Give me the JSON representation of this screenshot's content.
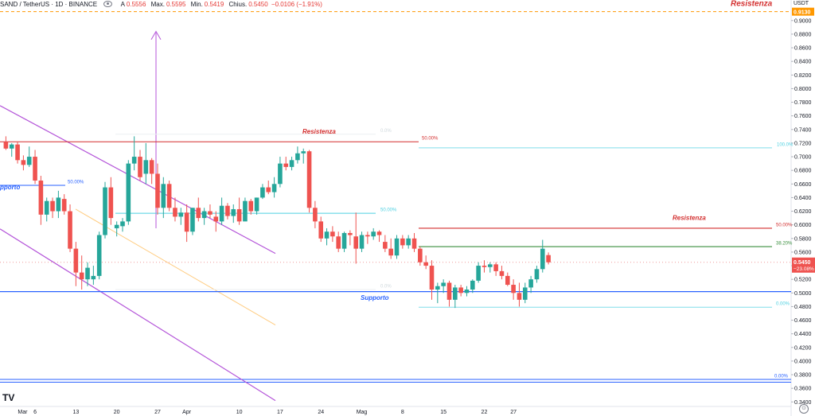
{
  "header": {
    "symbol": "SAND / TetherUS · 1D · BINANCE",
    "open_label": "A",
    "open_value": "0.5556",
    "high_label": "Max.",
    "high_value": "0.5595",
    "low_label": "Min.",
    "low_value": "0.5419",
    "close_label": "Chius.",
    "close_value": "0.5450",
    "change_value": "−0.0106 (−1.91%)"
  },
  "toolbar": {
    "currency_label": "USDT",
    "scale_toggle": "⊙"
  },
  "logo_text": "TV",
  "colors": {
    "up": "#26a69a",
    "down": "#ef5350",
    "purple": "#b455d9",
    "blue": "#2962ff",
    "red": "#d32f2f",
    "green": "#388e3c",
    "cyan": "#4dd0e1",
    "orange": "#ff9800"
  },
  "chart_data": {
    "type": "candlestick",
    "ylim": [
      0.33,
      0.92
    ],
    "y_ticks": [
      "0.9000",
      "0.8800",
      "0.8600",
      "0.8400",
      "0.8200",
      "0.8000",
      "0.7800",
      "0.7600",
      "0.7400",
      "0.7200",
      "0.7000",
      "0.6800",
      "0.6600",
      "0.6400",
      "0.6200",
      "0.6000",
      "0.5800",
      "0.5600",
      "0.5400",
      "0.5200",
      "0.5000",
      "0.4800",
      "0.4600",
      "0.4400",
      "0.4200",
      "0.4000",
      "0.3800",
      "0.3600",
      "0.3400"
    ],
    "x_ticks": [
      {
        "label": "Mar",
        "day": 0
      },
      {
        "label": "6",
        "day": 5
      },
      {
        "label": "13",
        "day": 12
      },
      {
        "label": "20",
        "day": 19
      },
      {
        "label": "27",
        "day": 26
      },
      {
        "label": "Apr",
        "day": 31
      },
      {
        "label": "10",
        "day": 40
      },
      {
        "label": "17",
        "day": 47
      },
      {
        "label": "24",
        "day": 54
      },
      {
        "label": "Mag",
        "day": 61
      },
      {
        "label": "8",
        "day": 68
      },
      {
        "label": "15",
        "day": 75
      },
      {
        "label": "22",
        "day": 82
      },
      {
        "label": "27",
        "day": 87
      }
    ],
    "candles": [
      [
        0.722,
        0.73,
        0.71,
        0.712
      ],
      [
        0.712,
        0.72,
        0.7,
        0.718
      ],
      [
        0.718,
        0.722,
        0.69,
        0.695
      ],
      [
        0.695,
        0.702,
        0.68,
        0.688
      ],
      [
        0.688,
        0.715,
        0.685,
        0.7
      ],
      [
        0.7,
        0.71,
        0.66,
        0.665
      ],
      [
        0.665,
        0.672,
        0.6,
        0.615
      ],
      [
        0.615,
        0.64,
        0.605,
        0.635
      ],
      [
        0.635,
        0.64,
        0.61,
        0.62
      ],
      [
        0.62,
        0.65,
        0.61,
        0.64
      ],
      [
        0.638,
        0.645,
        0.615,
        0.62
      ],
      [
        0.62,
        0.63,
        0.56,
        0.565
      ],
      [
        0.565,
        0.575,
        0.51,
        0.53
      ],
      [
        0.53,
        0.555,
        0.505,
        0.52
      ],
      [
        0.52,
        0.545,
        0.51,
        0.537
      ],
      [
        0.52,
        0.54,
        0.512,
        0.525
      ],
      [
        0.525,
        0.59,
        0.52,
        0.585
      ],
      [
        0.585,
        0.663,
        0.58,
        0.655
      ],
      [
        0.655,
        0.67,
        0.6,
        0.61
      ],
      [
        0.595,
        0.605,
        0.583,
        0.6
      ],
      [
        0.598,
        0.61,
        0.59,
        0.605
      ],
      [
        0.605,
        0.695,
        0.6,
        0.69
      ],
      [
        0.69,
        0.73,
        0.68,
        0.7
      ],
      [
        0.7,
        0.71,
        0.665,
        0.67
      ],
      [
        0.675,
        0.72,
        0.66,
        0.695
      ],
      [
        0.695,
        0.698,
        0.66,
        0.675
      ],
      [
        0.675,
        0.69,
        0.615,
        0.625
      ],
      [
        0.625,
        0.67,
        0.61,
        0.66
      ],
      [
        0.66,
        0.665,
        0.62,
        0.625
      ],
      [
        0.625,
        0.64,
        0.605,
        0.612
      ],
      [
        0.612,
        0.625,
        0.6,
        0.618
      ],
      [
        0.618,
        0.63,
        0.575,
        0.59
      ],
      [
        0.59,
        0.625,
        0.585,
        0.625
      ],
      [
        0.625,
        0.64,
        0.605,
        0.61
      ],
      [
        0.61,
        0.625,
        0.6,
        0.62
      ],
      [
        0.62,
        0.63,
        0.61,
        0.615
      ],
      [
        0.612,
        0.62,
        0.59,
        0.605
      ],
      [
        0.605,
        0.64,
        0.6,
        0.628
      ],
      [
        0.628,
        0.632,
        0.608,
        0.613
      ],
      [
        0.613,
        0.63,
        0.603,
        0.623
      ],
      [
        0.623,
        0.64,
        0.6,
        0.605
      ],
      [
        0.605,
        0.64,
        0.61,
        0.635
      ],
      [
        0.635,
        0.638,
        0.615,
        0.62
      ],
      [
        0.62,
        0.64,
        0.615,
        0.64
      ],
      [
        0.64,
        0.66,
        0.638,
        0.655
      ],
      [
        0.655,
        0.665,
        0.645,
        0.648
      ],
      [
        0.648,
        0.67,
        0.64,
        0.66
      ],
      [
        0.66,
        0.7,
        0.655,
        0.69
      ],
      [
        0.69,
        0.7,
        0.68,
        0.685
      ],
      [
        0.685,
        0.7,
        0.68,
        0.695
      ],
      [
        0.695,
        0.715,
        0.69,
        0.705
      ],
      [
        0.705,
        0.712,
        0.69,
        0.708
      ],
      [
        0.708,
        0.71,
        0.618,
        0.625
      ],
      [
        0.625,
        0.635,
        0.595,
        0.605
      ],
      [
        0.605,
        0.612,
        0.575,
        0.58
      ],
      [
        0.58,
        0.595,
        0.57,
        0.59
      ],
      [
        0.59,
        0.598,
        0.575,
        0.583
      ],
      [
        0.583,
        0.59,
        0.56,
        0.565
      ],
      [
        0.565,
        0.59,
        0.56,
        0.588
      ],
      [
        0.588,
        0.592,
        0.57,
        0.585
      ],
      [
        0.583,
        0.618,
        0.543,
        0.565
      ],
      [
        0.565,
        0.59,
        0.56,
        0.585
      ],
      [
        0.585,
        0.59,
        0.572,
        0.583
      ],
      [
        0.583,
        0.595,
        0.578,
        0.59
      ],
      [
        0.59,
        0.592,
        0.575,
        0.585
      ],
      [
        0.575,
        0.585,
        0.56,
        0.565
      ],
      [
        0.565,
        0.58,
        0.55,
        0.555
      ],
      [
        0.555,
        0.585,
        0.55,
        0.58
      ],
      [
        0.58,
        0.585,
        0.565,
        0.57
      ],
      [
        0.57,
        0.585,
        0.565,
        0.58
      ],
      [
        0.58,
        0.588,
        0.56,
        0.565
      ],
      [
        0.565,
        0.568,
        0.54,
        0.545
      ],
      [
        0.545,
        0.555,
        0.535,
        0.54
      ],
      [
        0.54,
        0.548,
        0.49,
        0.505
      ],
      [
        0.505,
        0.515,
        0.485,
        0.51
      ],
      [
        0.51,
        0.52,
        0.5,
        0.515
      ],
      [
        0.515,
        0.518,
        0.48,
        0.49
      ],
      [
        0.49,
        0.512,
        0.478,
        0.508
      ],
      [
        0.508,
        0.512,
        0.495,
        0.5
      ],
      [
        0.5,
        0.51,
        0.495,
        0.505
      ],
      [
        0.505,
        0.52,
        0.5,
        0.518
      ],
      [
        0.518,
        0.545,
        0.515,
        0.54
      ],
      [
        0.54,
        0.548,
        0.53,
        0.538
      ],
      [
        0.538,
        0.545,
        0.53,
        0.542
      ],
      [
        0.542,
        0.545,
        0.525,
        0.532
      ],
      [
        0.532,
        0.54,
        0.52,
        0.525
      ],
      [
        0.525,
        0.53,
        0.51,
        0.512
      ],
      [
        0.512,
        0.52,
        0.49,
        0.5
      ],
      [
        0.5,
        0.515,
        0.48,
        0.49
      ],
      [
        0.49,
        0.515,
        0.485,
        0.508
      ],
      [
        0.508,
        0.525,
        0.5,
        0.52
      ],
      [
        0.52,
        0.54,
        0.515,
        0.535
      ],
      [
        0.535,
        0.578,
        0.53,
        0.565
      ],
      [
        0.5556,
        0.5595,
        0.5419,
        0.545
      ]
    ],
    "h_lines": [
      {
        "name": "resistance-top-dashed",
        "y": 0.913,
        "color": "#ff9800",
        "dash": true
      },
      {
        "name": "support-low-line",
        "y": 0.373,
        "color": "#2962ff"
      },
      {
        "name": "support-low-line-2",
        "y": 0.369,
        "color": "#2962ff"
      }
    ],
    "labels": {
      "resistenza_top": "Resistenza",
      "resistenza_left": "Resistenza",
      "resistenza_right": "Resistenza",
      "supporto_left": "pporto",
      "supporto_mid": "Supporto",
      "fib_50_left": "50.00%",
      "fib_50_mid": "50.00%",
      "fib_50_top": "50.00%",
      "fib_50_right": "50.00%",
      "fib_100_right": "100.0%",
      "fib_38_right": "38.20%",
      "fib_0_right": "0.00%",
      "fib_0_low": "0.00%",
      "fib_faint_top": "0.0%",
      "fib_faint_bottom": "0.0%"
    },
    "price_tags": {
      "top_price": "0.9130",
      "last_price": "0.5450",
      "last_change": "−23.08%"
    }
  }
}
